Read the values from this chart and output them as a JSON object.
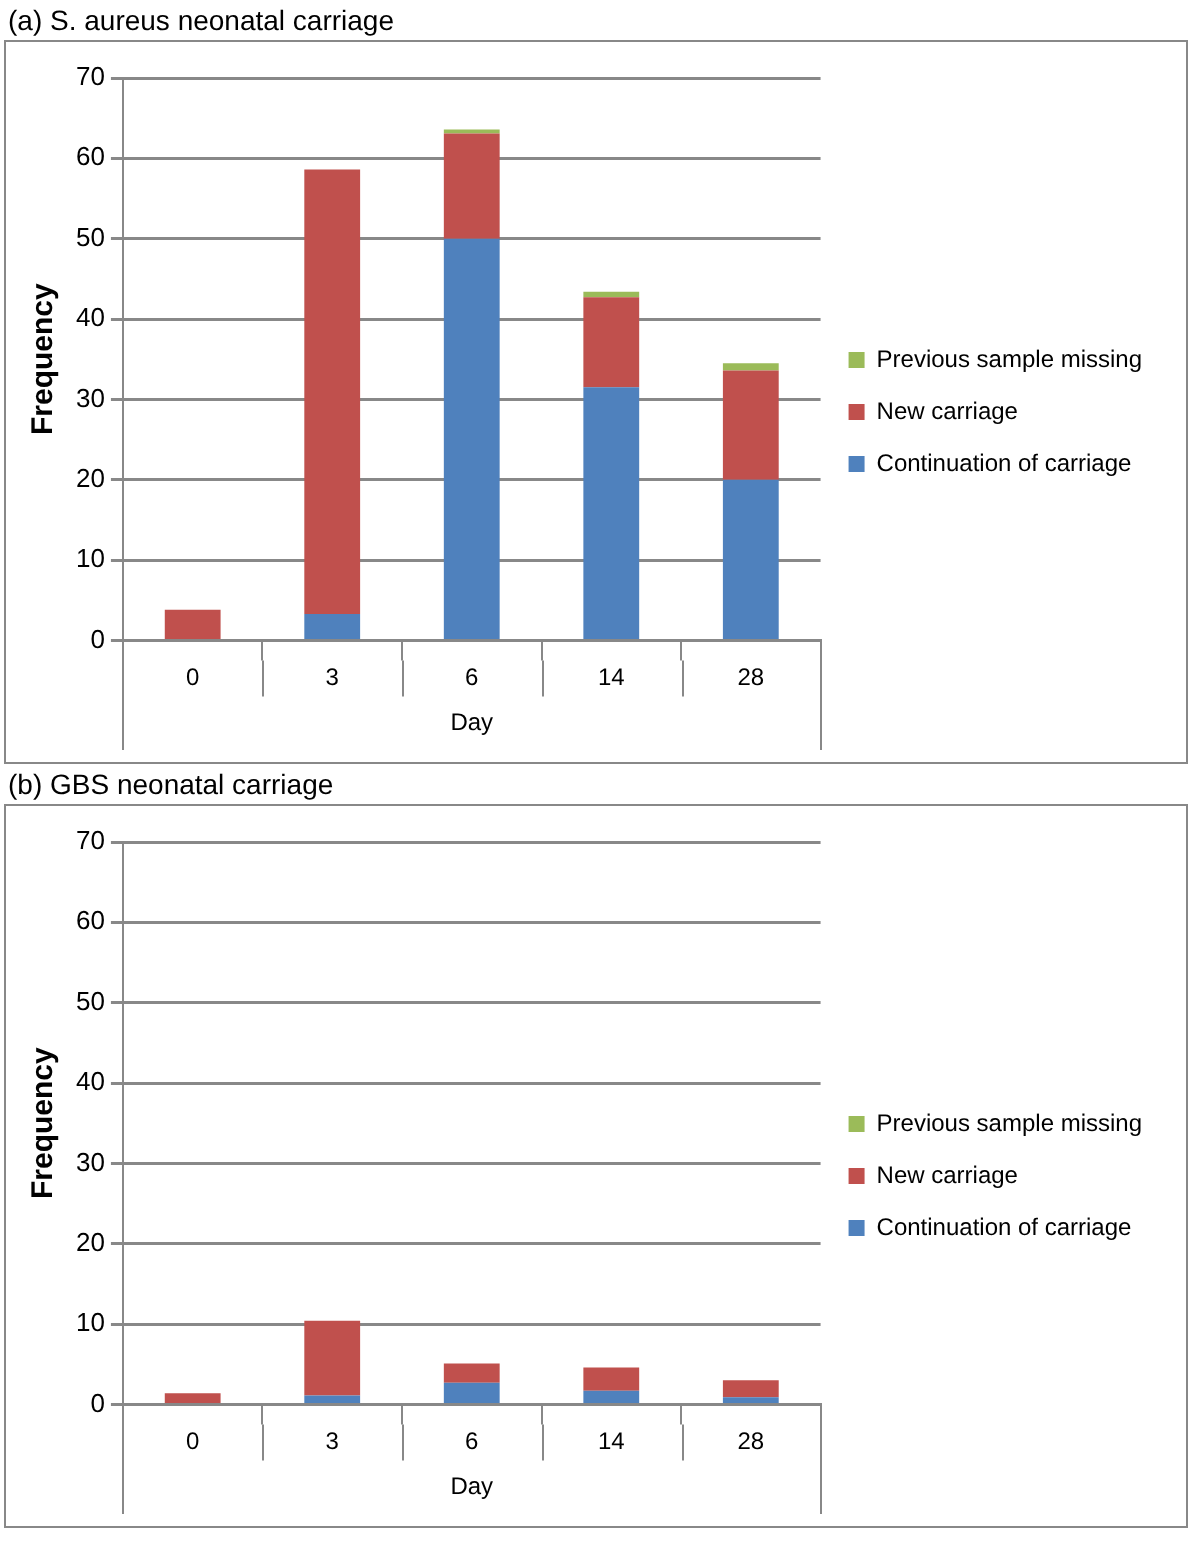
{
  "chart_data": [
    {
      "type": "bar",
      "title": "(a) S. aureus neonatal carriage",
      "xlabel": "Day",
      "ylabel": "Frequency",
      "categories": [
        "0",
        "3",
        "6",
        "14",
        "28"
      ],
      "stacked": true,
      "grid": "y",
      "legend": "right",
      "ylim": [
        0,
        70
      ],
      "yticks": [
        0,
        10,
        20,
        30,
        40,
        50,
        60,
        70
      ],
      "series": [
        {
          "name": "Continuation of carriage",
          "color": "#4f81bd",
          "values": [
            0,
            3.3,
            50,
            31.5,
            20
          ]
        },
        {
          "name": "New carriage",
          "color": "#c0504d",
          "values": [
            3.8,
            55.3,
            13.1,
            11.2,
            13.6
          ]
        },
        {
          "name": "Previous sample missing",
          "color": "#9bbb59",
          "values": [
            0,
            0,
            0.5,
            0.7,
            0.9
          ]
        }
      ]
    },
    {
      "type": "bar",
      "title": "(b) GBS neonatal carriage",
      "xlabel": "Day",
      "ylabel": "Frequency",
      "categories": [
        "0",
        "3",
        "6",
        "14",
        "28"
      ],
      "stacked": true,
      "grid": "y",
      "legend": "right",
      "ylim": [
        0,
        70
      ],
      "yticks": [
        0,
        10,
        20,
        30,
        40,
        50,
        60,
        70
      ],
      "series": [
        {
          "name": "Continuation of carriage",
          "color": "#4f81bd",
          "values": [
            0,
            1.1,
            2.7,
            1.7,
            0.9
          ]
        },
        {
          "name": "New carriage",
          "color": "#c0504d",
          "values": [
            1.4,
            9.3,
            2.4,
            2.9,
            2.1
          ]
        },
        {
          "name": "Previous sample missing",
          "color": "#9bbb59",
          "values": [
            0,
            0,
            0,
            0,
            0
          ]
        }
      ]
    }
  ]
}
